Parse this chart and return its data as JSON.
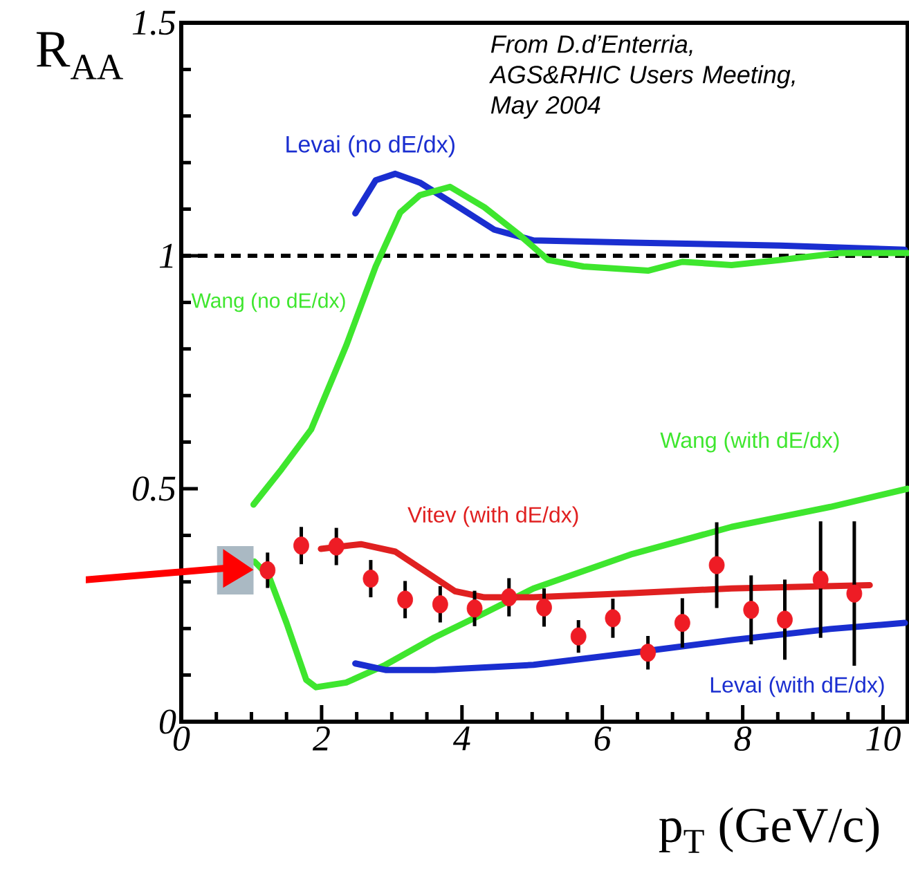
{
  "chart_data": {
    "type": "line",
    "xlabel": "p$_{T}$ (GeV/c)",
    "ylabel": "R$_{AA}$",
    "xlim": [
      0,
      10.35
    ],
    "ylim": [
      0,
      1.5
    ],
    "xticks": [
      0,
      2,
      4,
      6,
      8,
      10
    ],
    "yticks": [
      0,
      0.5,
      1,
      1.5
    ],
    "annotations": [
      "From D.d’Enterria, AGS&RHIC Users Meeting, May 2004"
    ],
    "ref_lines": [
      {
        "axis": "y",
        "value": 1,
        "color": "#000000",
        "line_style": "dashed"
      }
    ],
    "series": [
      {
        "name": "Levai (no dE/dx)",
        "color": "#1a2ed0",
        "line_style": "solid",
        "marker": "none",
        "x": [
          2.48,
          2.77,
          3.05,
          3.4,
          3.96,
          4.46,
          5.02,
          6.43,
          8.54,
          10.31
        ],
        "values": [
          1.091,
          1.162,
          1.176,
          1.157,
          1.104,
          1.056,
          1.033,
          1.028,
          1.022,
          1.013
        ]
      },
      {
        "name": "Wang (no dE/dx)",
        "color": "#3ee62e",
        "line_style": "solid",
        "marker": "none",
        "x": [
          1.03,
          1.43,
          1.85,
          2.35,
          2.77,
          3.12,
          3.4,
          3.83,
          4.32,
          4.81,
          5.23,
          5.73,
          6.65,
          7.14,
          7.84,
          8.54,
          9.39,
          10.35
        ],
        "values": [
          0.466,
          0.542,
          0.627,
          0.807,
          0.977,
          1.093,
          1.13,
          1.148,
          1.104,
          1.046,
          0.991,
          0.977,
          0.968,
          0.987,
          0.98,
          0.991,
          1.006,
          1.006
        ]
      },
      {
        "name": "Wang (with dE/dx)",
        "color": "#3ee62e",
        "line_style": "solid",
        "marker": "none",
        "x": [
          1.04,
          1.25,
          1.5,
          1.78,
          1.92,
          2.35,
          2.91,
          3.61,
          4.32,
          5.02,
          6.43,
          7.84,
          9.25,
          10.35
        ],
        "values": [
          0.344,
          0.312,
          0.212,
          0.09,
          0.074,
          0.084,
          0.122,
          0.181,
          0.233,
          0.286,
          0.36,
          0.418,
          0.461,
          0.5
        ]
      },
      {
        "name": "Vitev (with dE/dx)",
        "color": "#e02020",
        "line_style": "solid",
        "marker": "none",
        "x": [
          1.99,
          2.56,
          3.05,
          3.47,
          3.9,
          4.32,
          5.02,
          6.43,
          7.84,
          9.81
        ],
        "values": [
          0.371,
          0.381,
          0.365,
          0.323,
          0.28,
          0.267,
          0.267,
          0.276,
          0.286,
          0.293
        ]
      },
      {
        "name": "Levai (with dE/dx)",
        "color": "#1a2ed0",
        "line_style": "solid",
        "marker": "none",
        "x": [
          2.48,
          2.91,
          3.61,
          5.02,
          6.43,
          7.84,
          9.25,
          10.31
        ],
        "values": [
          0.125,
          0.111,
          0.111,
          0.122,
          0.148,
          0.175,
          0.199,
          0.212
        ]
      },
      {
        "type": "scatter",
        "color": "#ee1c25",
        "marker": "circle",
        "x": [
          1.23,
          1.71,
          2.21,
          2.7,
          3.19,
          3.69,
          4.18,
          4.67,
          5.17,
          5.66,
          6.15,
          6.65,
          7.14,
          7.63,
          8.12,
          8.6,
          9.11,
          9.59
        ],
        "values": [
          0.325,
          0.378,
          0.376,
          0.307,
          0.262,
          0.252,
          0.243,
          0.267,
          0.245,
          0.183,
          0.222,
          0.148,
          0.212,
          0.336,
          0.24,
          0.219,
          0.305,
          0.275
        ],
        "errors": [
          0.038,
          0.04,
          0.04,
          0.04,
          0.04,
          0.039,
          0.038,
          0.041,
          0.041,
          0.035,
          0.042,
          0.036,
          0.053,
          0.092,
          0.074,
          0.086,
          0.125,
          0.155
        ]
      }
    ]
  }
}
